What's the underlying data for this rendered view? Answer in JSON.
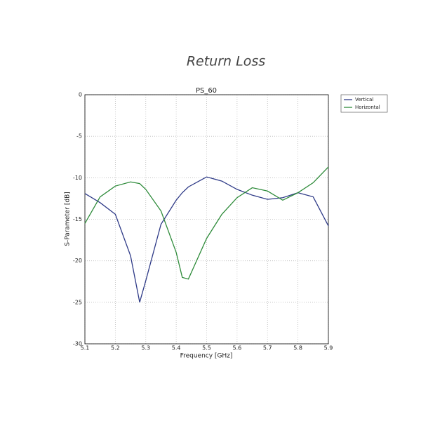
{
  "chart_data": {
    "type": "line",
    "suptitle": "Return Loss",
    "title": "PS_60",
    "x_label": "Frequency [GHz]",
    "y_label": "S-Parameter [dB]",
    "x": [
      5.1,
      5.15,
      5.2,
      5.25,
      5.28,
      5.3,
      5.35,
      5.4,
      5.42,
      5.44,
      5.5,
      5.55,
      5.6,
      5.65,
      5.7,
      5.75,
      5.8,
      5.85,
      5.9
    ],
    "series": [
      {
        "name": "Vertical",
        "color": "#2e3a87",
        "values": [
          -11.9,
          -13,
          -14.4,
          -19.4,
          -25,
          -22.4,
          -15.6,
          -12.7,
          -11.8,
          -11.1,
          -9.9,
          -10.4,
          -11.4,
          -12.1,
          -12.6,
          -12.4,
          -11.8,
          -12.3,
          -15.8
        ]
      },
      {
        "name": "Horizontal",
        "color": "#2e8b3a",
        "values": [
          -15.5,
          -12.3,
          -11,
          -10.5,
          -10.7,
          -11.4,
          -14,
          -19,
          -22,
          -22.2,
          -17.3,
          -14.4,
          -12.4,
          -11.2,
          -11.6,
          -12.7,
          -11.8,
          -10.6,
          -8.7
        ]
      }
    ],
    "xlim": [
      5.1,
      5.9
    ],
    "xticks": [
      5.1,
      5.2,
      5.3,
      5.4,
      5.5,
      5.6,
      5.7,
      5.8,
      5.9
    ],
    "ylim": [
      -30,
      0
    ],
    "yticks": [
      0,
      -5,
      -10,
      -15,
      -20,
      -25,
      -30
    ],
    "grid": true,
    "legend": "outside-upper-right"
  }
}
